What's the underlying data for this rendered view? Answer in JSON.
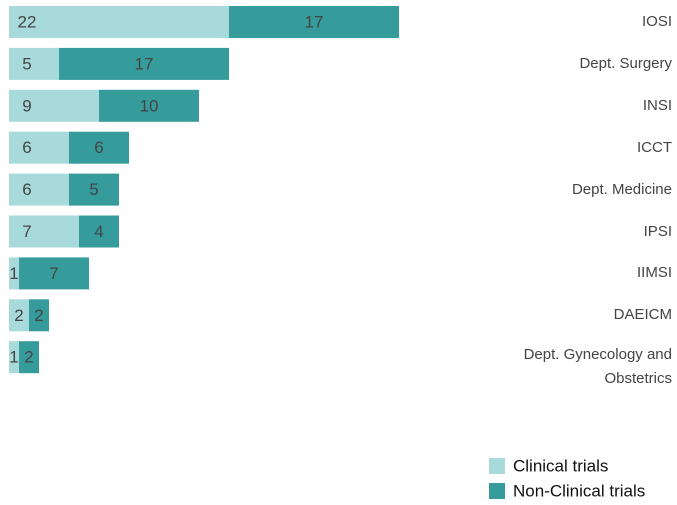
{
  "chart_data": {
    "type": "bar",
    "orientation": "horizontal",
    "stacked": true,
    "categories": [
      "IOSI",
      "Dept. Surgery",
      "INSI",
      "ICCT",
      "Dept. Medicine",
      "IPSI",
      "IIMSI",
      "DAEICM",
      "Dept. Gynecology and Obstetrics"
    ],
    "series": [
      {
        "name": "Clinical trials",
        "color": "#a8dadc",
        "values": [
          22,
          5,
          9,
          6,
          6,
          7,
          1,
          2,
          1
        ]
      },
      {
        "name": "Non-Clinical trials",
        "color": "#359c9b",
        "values": [
          17,
          17,
          10,
          6,
          5,
          4,
          7,
          2,
          2
        ]
      }
    ],
    "legend": "bottom-right"
  }
}
